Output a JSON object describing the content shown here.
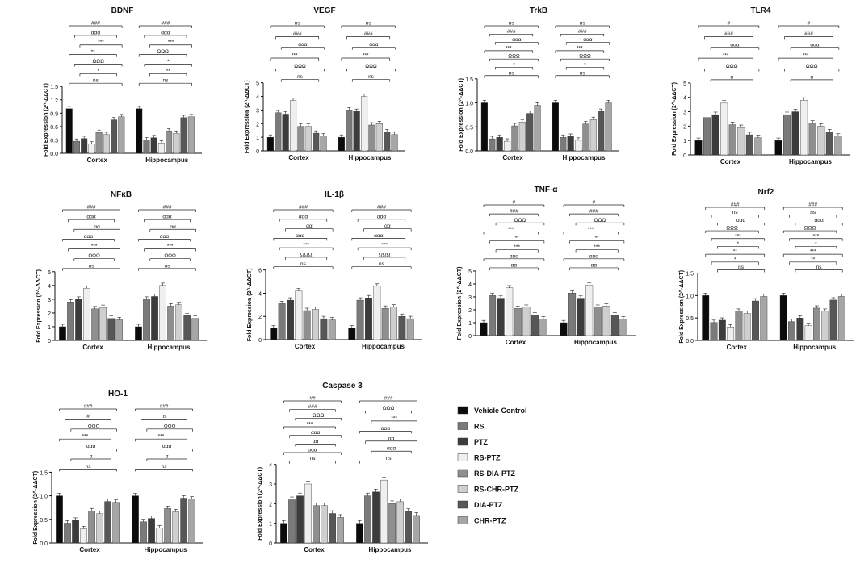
{
  "chart_data": {
    "type": "bar",
    "layout": "grouped bar panels",
    "ylabel": "Fold Expression (2^-ΔΔCT)",
    "groups": [
      "Cortex",
      "Hippocampus"
    ],
    "legend": {
      "position": "bottom-center",
      "entries": [
        "Vehicle Control",
        "RS",
        "PTZ",
        "RS-PTZ",
        "RS-DIA-PTZ",
        "RS-CHR-PTZ",
        "DIA-PTZ",
        "CHR-PTZ"
      ],
      "colors": [
        "#0b0b0b",
        "#7a7a7a",
        "#3c3c3c",
        "#efefef",
        "#8f8f8f",
        "#cfcfcf",
        "#575757",
        "#a6a6a6"
      ]
    },
    "panels": [
      {
        "title": "BDNF",
        "ylim": [
          0,
          1.5
        ],
        "yticks": [
          "0.0",
          "0.3",
          "0.6",
          "0.9",
          "1.2",
          "1.5"
        ],
        "series": {
          "Cortex": [
            1.0,
            0.27,
            0.33,
            0.21,
            0.47,
            0.42,
            0.75,
            0.82
          ],
          "Hippocampus": [
            1.0,
            0.3,
            0.35,
            0.23,
            0.5,
            0.45,
            0.8,
            0.82
          ]
        },
        "annotations": {
          "Cortex": [
            "###",
            "ααα",
            "***",
            "**",
            "ΩΩΩ",
            "*",
            "ns"
          ],
          "Hippocampus": [
            "###",
            "ααα",
            "***",
            "ΩΩΩ",
            "*",
            "**",
            "ns"
          ]
        }
      },
      {
        "title": "VEGF",
        "ylim": [
          0,
          5
        ],
        "yticks": [
          "0",
          "1",
          "2",
          "3",
          "4",
          "5"
        ],
        "series": {
          "Cortex": [
            1.0,
            2.8,
            2.7,
            3.7,
            1.8,
            1.8,
            1.3,
            1.1
          ],
          "Hippocampus": [
            1.0,
            3.0,
            2.9,
            4.0,
            1.9,
            2.0,
            1.4,
            1.2
          ]
        },
        "annotations": {
          "Cortex": [
            "ns",
            "###",
            "ααα",
            "***",
            "ΩΩΩ",
            "ns"
          ],
          "Hippocampus": [
            "ns",
            "###",
            "ααα",
            "***",
            "ΩΩΩ",
            "ns"
          ]
        }
      },
      {
        "title": "TrkB",
        "ylim": [
          0,
          1.5
        ],
        "yticks": [
          "0.0",
          "0.5",
          "1.0",
          "1.5"
        ],
        "series": {
          "Cortex": [
            1.0,
            0.25,
            0.28,
            0.2,
            0.52,
            0.6,
            0.78,
            0.95
          ],
          "Hippocampus": [
            1.0,
            0.28,
            0.3,
            0.22,
            0.56,
            0.65,
            0.82,
            1.0
          ]
        },
        "annotations": {
          "Cortex": [
            "ns",
            "###",
            "ααα",
            "***",
            "ΩΩΩ",
            "*",
            "ns"
          ],
          "Hippocampus": [
            "ns",
            "###",
            "ααα",
            "***",
            "ΩΩΩ",
            "*",
            "ns"
          ]
        }
      },
      {
        "title": "TLR4",
        "ylim": [
          0,
          5
        ],
        "yticks": [
          "0",
          "1",
          "2",
          "3",
          "4",
          "5"
        ],
        "series": {
          "Cortex": [
            1.0,
            2.6,
            2.8,
            3.6,
            2.1,
            1.9,
            1.4,
            1.2
          ],
          "Hippocampus": [
            1.0,
            2.8,
            3.0,
            3.8,
            2.2,
            2.0,
            1.6,
            1.3
          ]
        },
        "annotations": {
          "Cortex": [
            "#",
            "###",
            "ααα",
            "***",
            "ΩΩΩ",
            "α"
          ],
          "Hippocampus": [
            "#",
            "###",
            "ααα",
            "***",
            "ΩΩΩ",
            "α"
          ]
        }
      },
      {
        "title": "NFκB",
        "ylim": [
          0,
          5
        ],
        "yticks": [
          "0",
          "1",
          "2",
          "3",
          "4",
          "5"
        ],
        "series": {
          "Cortex": [
            1.0,
            2.8,
            3.0,
            3.8,
            2.3,
            2.4,
            1.6,
            1.5
          ],
          "Hippocampus": [
            1.0,
            3.0,
            3.2,
            4.0,
            2.5,
            2.6,
            1.8,
            1.6
          ]
        },
        "annotations": {
          "Cortex": [
            "###",
            "ααα",
            "αα",
            "ααα",
            "***",
            "ΩΩΩ",
            "ns"
          ],
          "Hippocampus": [
            "###",
            "ααα",
            "αα",
            "ααα",
            "***",
            "ΩΩΩ",
            "ns"
          ]
        }
      },
      {
        "title": "IL-1β",
        "ylim": [
          0,
          6
        ],
        "yticks": [
          "0",
          "2",
          "4",
          "6"
        ],
        "series": {
          "Cortex": [
            1.0,
            3.1,
            3.4,
            4.2,
            2.5,
            2.6,
            1.8,
            1.7
          ],
          "Hippocampus": [
            1.0,
            3.4,
            3.6,
            4.6,
            2.7,
            2.8,
            2.0,
            1.8
          ]
        },
        "annotations": {
          "Cortex": [
            "###",
            "ααα",
            "αα",
            "ααα",
            "***",
            "ΩΩΩ",
            "ns"
          ],
          "Hippocampus": [
            "###",
            "ααα",
            "αα",
            "ααα",
            "***",
            "ΩΩΩ",
            "ns"
          ]
        }
      },
      {
        "title": "TNF-α",
        "ylim": [
          0,
          5
        ],
        "yticks": [
          "0",
          "1",
          "2",
          "3",
          "4",
          "5"
        ],
        "series": {
          "Cortex": [
            1.0,
            3.1,
            2.9,
            3.7,
            2.1,
            2.2,
            1.6,
            1.3
          ],
          "Hippocampus": [
            1.0,
            3.3,
            2.9,
            3.9,
            2.2,
            2.3,
            1.6,
            1.3
          ]
        },
        "annotations": {
          "Cortex": [
            "#",
            "###",
            "ΩΩΩ",
            "***",
            "**",
            "***",
            "ααα",
            "αα"
          ],
          "Hippocampus": [
            "#",
            "###",
            "ΩΩΩ",
            "***",
            "**",
            "***",
            "ααα",
            "αα"
          ]
        }
      },
      {
        "title": "Nrf2",
        "ylim": [
          0,
          1.5
        ],
        "yticks": [
          "0.0",
          "0.5",
          "1.0",
          "1.5"
        ],
        "series": {
          "Cortex": [
            1.0,
            0.4,
            0.45,
            0.3,
            0.65,
            0.6,
            0.88,
            0.98
          ],
          "Hippocampus": [
            1.0,
            0.42,
            0.5,
            0.33,
            0.72,
            0.65,
            0.9,
            0.98
          ]
        },
        "annotations": {
          "Cortex": [
            "###",
            "ns",
            "ααα",
            "ΩΩΩ",
            "***",
            "*",
            "**",
            "*",
            "ns"
          ],
          "Hippocampus": [
            "###",
            "ns",
            "ααα",
            "ΩΩΩ",
            "***",
            "*",
            "***",
            "**",
            "ns"
          ]
        }
      },
      {
        "title": "HO-1",
        "ylim": [
          0,
          1.5
        ],
        "yticks": [
          "0.0",
          "0.5",
          "1.0",
          "1.5"
        ],
        "series": {
          "Cortex": [
            1.0,
            0.42,
            0.48,
            0.3,
            0.68,
            0.62,
            0.88,
            0.86
          ],
          "Hippocampus": [
            1.0,
            0.45,
            0.52,
            0.32,
            0.73,
            0.66,
            0.95,
            0.93
          ]
        },
        "annotations": {
          "Cortex": [
            "###",
            "#",
            "ΩΩΩ",
            "***",
            "ααα",
            "α",
            "ns"
          ],
          "Hippocampus": [
            "###",
            "ns",
            "ΩΩΩ",
            "***",
            "ααα",
            "α",
            "ns"
          ]
        }
      },
      {
        "title": "Caspase 3",
        "ylim": [
          0,
          4
        ],
        "yticks": [
          "0",
          "1",
          "2",
          "3",
          "4"
        ],
        "series": {
          "Cortex": [
            1.0,
            2.2,
            2.4,
            3.0,
            1.9,
            1.9,
            1.5,
            1.3
          ],
          "Hippocampus": [
            1.0,
            2.4,
            2.6,
            3.2,
            2.0,
            2.1,
            1.6,
            1.4
          ]
        },
        "annotations": {
          "Cortex": [
            "##",
            "###",
            "ΩΩΩ",
            "***",
            "ααα",
            "αα",
            "ααα",
            "ns"
          ],
          "Hippocampus": [
            "###",
            "ΩΩΩ",
            "***",
            "ααα",
            "αα",
            "ααα",
            "ns"
          ]
        }
      }
    ]
  }
}
